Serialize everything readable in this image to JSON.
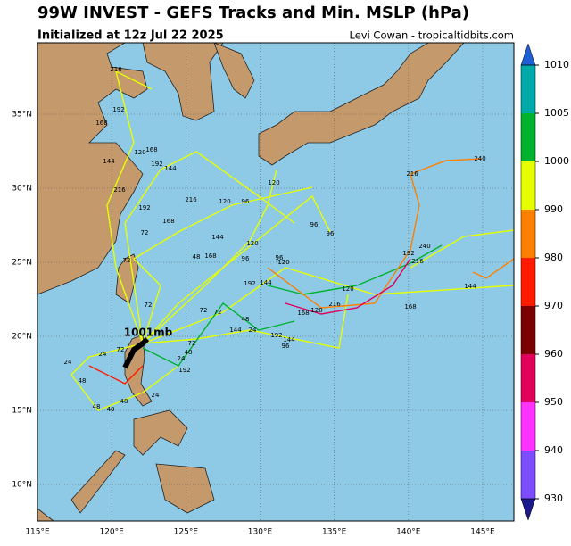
{
  "header": {
    "title": "99W INVEST - GEFS Tracks and Min. MSLP (hPa)",
    "subtitle": "Initialized at 12z Jul 22 2025",
    "credit": "Levi Cowan - tropicaltidbits.com"
  },
  "map": {
    "xticks": [
      {
        "value": 115,
        "label": "115°E"
      },
      {
        "value": 120,
        "label": "120°E"
      },
      {
        "value": 125,
        "label": "125°E"
      },
      {
        "value": 130,
        "label": "130°E"
      },
      {
        "value": 135,
        "label": "135°E"
      },
      {
        "value": 140,
        "label": "140°E"
      },
      {
        "value": 145,
        "label": "145°E"
      }
    ],
    "yticks": [
      {
        "value": 10,
        "label": "10°N"
      },
      {
        "value": 15,
        "label": "15°N"
      },
      {
        "value": 20,
        "label": "20°N"
      },
      {
        "value": 25,
        "label": "25°N"
      },
      {
        "value": 30,
        "label": "30°N"
      },
      {
        "value": 35,
        "label": "35°N"
      }
    ],
    "annotation": "1001mb",
    "track_labels": [
      "216",
      "192",
      "168",
      "144",
      "120",
      "192",
      "168",
      "144",
      "216",
      "120",
      "216",
      "240",
      "216",
      "120",
      "96",
      "192",
      "168",
      "96",
      "96",
      "72",
      "72",
      "240",
      "192",
      "216",
      "144",
      "120",
      "48",
      "168",
      "96",
      "120",
      "96",
      "120",
      "144",
      "168",
      "216",
      "120",
      "168",
      "192",
      "144",
      "72",
      "72",
      "72",
      "48",
      "144",
      "24",
      "192",
      "144",
      "96",
      "72",
      "48",
      "24",
      "192",
      "72",
      "24",
      "24",
      "48",
      "48",
      "48",
      "48",
      "24"
    ]
  },
  "colorbar": {
    "ticks": [
      930,
      940,
      950,
      960,
      970,
      980,
      990,
      1000,
      1005,
      1010
    ],
    "colors": [
      "#7b4dff",
      "#ff33ff",
      "#e0005a",
      "#780000",
      "#ff1a00",
      "#ff7f00",
      "#e6ff00",
      "#00b22d",
      "#00aaaa"
    ],
    "extend_colors": [
      "#1a1a8c",
      "#1f5fd6"
    ]
  }
}
